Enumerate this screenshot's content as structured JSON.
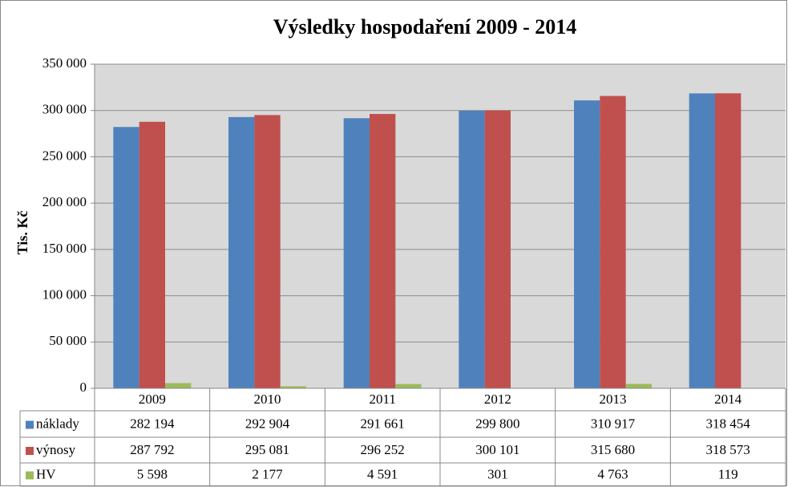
{
  "chart_data": {
    "type": "bar",
    "title": "Výsledky hospodaření 2009 - 2014",
    "y_label": "Tis. Kč",
    "categories": [
      "2009",
      "2010",
      "2011",
      "2012",
      "2013",
      "2014"
    ],
    "series": [
      {
        "name": "náklady",
        "color": "#4f81bd",
        "values": [
          282194,
          292904,
          291661,
          299800,
          310917,
          318454
        ],
        "value_labels": [
          "282 194",
          "292 904",
          "291 661",
          "299 800",
          "310 917",
          "318 454"
        ]
      },
      {
        "name": "výnosy",
        "color": "#c0504d",
        "values": [
          287792,
          295081,
          296252,
          300101,
          315680,
          318573
        ],
        "value_labels": [
          "287 792",
          "295 081",
          "296 252",
          "300 101",
          "315 680",
          "318 573"
        ]
      },
      {
        "name": "HV",
        "color": "#9bbb59",
        "values": [
          5598,
          2177,
          4591,
          301,
          4763,
          119
        ],
        "value_labels": [
          "5 598",
          "2 177",
          "4 591",
          "301",
          "4 763",
          "119"
        ]
      }
    ],
    "ylim": [
      0,
      350000
    ],
    "yticks": [
      0,
      {
        "value": 50000,
        "label": "50 000"
      },
      {
        "value": 100000,
        "label": "100 000"
      },
      {
        "value": 150000,
        "label": "150 000"
      },
      {
        "value": 200000,
        "label": "200 000"
      },
      {
        "value": 250000,
        "label": "250 000"
      },
      {
        "value": 300000,
        "label": "300 000"
      },
      {
        "value": 350000,
        "label": "350 000"
      }
    ],
    "grid": true
  }
}
